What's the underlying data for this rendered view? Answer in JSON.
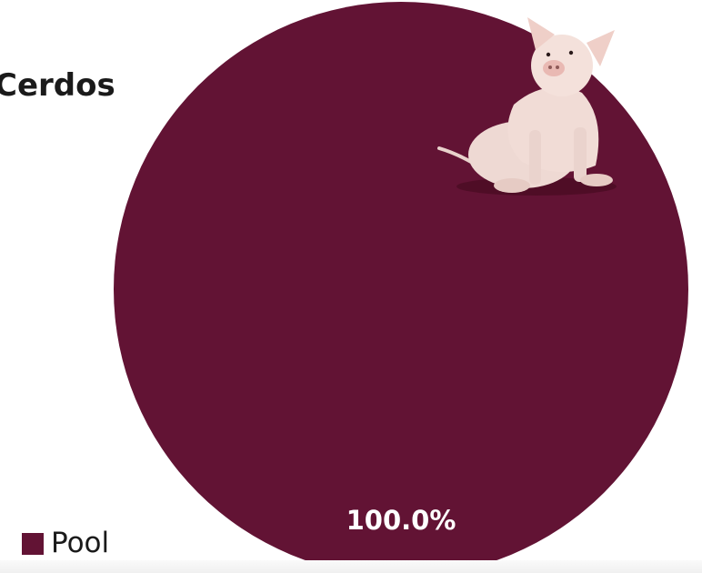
{
  "chart_data": {
    "type": "pie",
    "title": "Cerdos",
    "slices": [
      {
        "label": "Pool",
        "value": 100.0,
        "display": "100.0%",
        "color": "#621334"
      }
    ],
    "legend_position": "bottom-left"
  },
  "icons": {
    "decoration": "pig-icon"
  }
}
